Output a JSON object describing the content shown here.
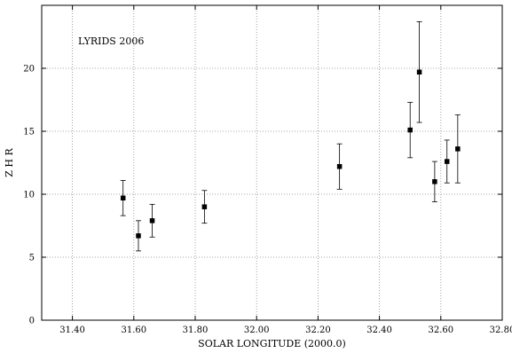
{
  "chart_data": {
    "type": "scatter",
    "title": "",
    "annotation": "LYRIDS 2006",
    "xlabel": "SOLAR LONGITUDE (2000.0)",
    "ylabel": "Z H R",
    "xlim": [
      31.3,
      32.8
    ],
    "ylim": [
      0,
      25
    ],
    "xticks": [
      {
        "value": 31.4,
        "label": "31.40"
      },
      {
        "value": 31.6,
        "label": "31.60"
      },
      {
        "value": 31.8,
        "label": "31.80"
      },
      {
        "value": 32.0,
        "label": "32.00"
      },
      {
        "value": 32.2,
        "label": "32.20"
      },
      {
        "value": 32.4,
        "label": "32.40"
      },
      {
        "value": 32.6,
        "label": "32.60"
      },
      {
        "value": 32.8,
        "label": "32.80"
      }
    ],
    "yticks": [
      {
        "value": 0,
        "label": "0"
      },
      {
        "value": 5,
        "label": "5"
      },
      {
        "value": 10,
        "label": "10"
      },
      {
        "value": 15,
        "label": "15"
      },
      {
        "value": 20,
        "label": "20"
      }
    ],
    "grid": true,
    "grid_style": "dotted",
    "marker": "square",
    "error_bars": true,
    "points": [
      {
        "x": 31.565,
        "y": 9.7,
        "ylow": 8.3,
        "yhigh": 11.1
      },
      {
        "x": 31.615,
        "y": 6.7,
        "ylow": 5.5,
        "yhigh": 7.9
      },
      {
        "x": 31.66,
        "y": 7.9,
        "ylow": 6.6,
        "yhigh": 9.2
      },
      {
        "x": 31.83,
        "y": 9.0,
        "ylow": 7.7,
        "yhigh": 10.3
      },
      {
        "x": 32.27,
        "y": 12.2,
        "ylow": 10.4,
        "yhigh": 14.0
      },
      {
        "x": 32.5,
        "y": 15.1,
        "ylow": 12.9,
        "yhigh": 17.3
      },
      {
        "x": 32.53,
        "y": 19.7,
        "ylow": 15.7,
        "yhigh": 23.7
      },
      {
        "x": 32.58,
        "y": 11.0,
        "ylow": 9.4,
        "yhigh": 12.6
      },
      {
        "x": 32.62,
        "y": 12.6,
        "ylow": 10.9,
        "yhigh": 14.3
      },
      {
        "x": 32.655,
        "y": 13.6,
        "ylow": 10.9,
        "yhigh": 16.3
      }
    ]
  }
}
